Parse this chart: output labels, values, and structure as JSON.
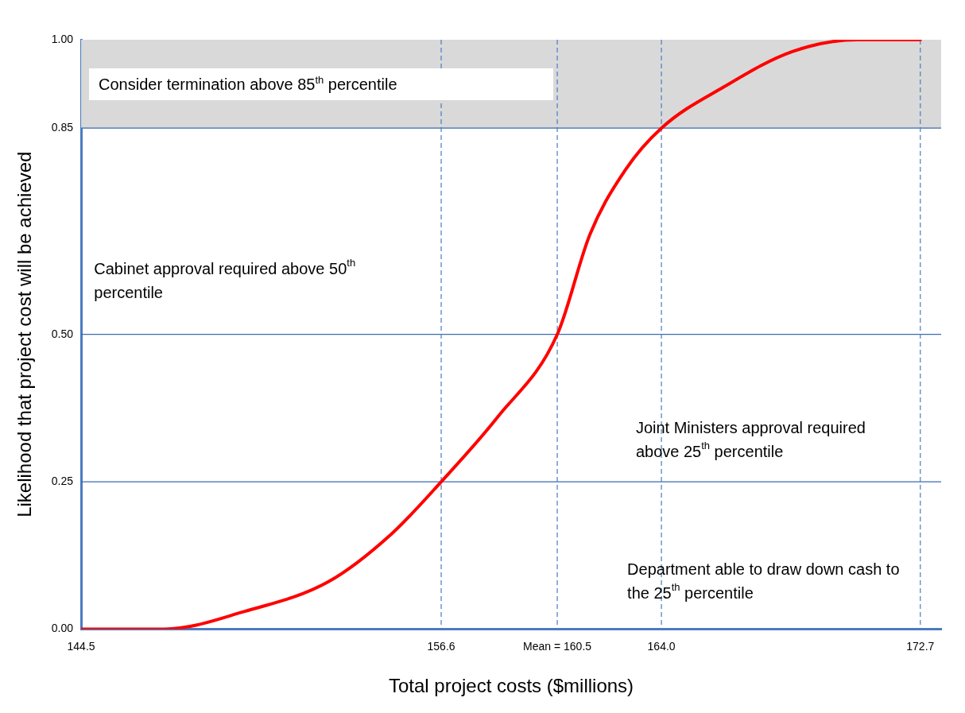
{
  "chart_data": {
    "type": "line",
    "xlabel": "Total project costs ($millions)",
    "ylabel": "Likelihood that project cost will be achieved",
    "x": [
      144.5,
      147.3,
      150.0,
      152.8,
      154.9,
      156.6,
      158.5,
      160.5,
      161.6,
      162.8,
      164.0,
      166.1,
      168.4,
      170.6,
      172.7
    ],
    "series": [
      {
        "color": "#ff0000",
        "values": [
          0.0,
          0.0,
          0.03,
          0.08,
          0.16,
          0.25,
          0.36,
          0.5,
          0.67,
          0.78,
          0.85,
          0.92,
          0.98,
          1.0,
          1.0
        ]
      }
    ],
    "xlim": [
      144.5,
      173.4
    ],
    "xticks": [
      144.5,
      156.6,
      {
        "value": 160.5,
        "label": "Mean = 160.5"
      },
      {
        "value": 164.0,
        "label": "164.0"
      },
      172.7
    ],
    "ylim": [
      0,
      1
    ],
    "yticks": [
      {
        "value": 0,
        "label": "0.00"
      },
      {
        "value": 0.25,
        "label": "0.25"
      },
      {
        "value": 0.5,
        "label": "0.50"
      },
      {
        "value": 0.85,
        "label": "0.85"
      },
      {
        "value": 1,
        "label": "1.00"
      }
    ],
    "grid": false,
    "legend": false,
    "marker": "none",
    "line_style": "solid",
    "ref_lines": [
      {
        "axis": "y",
        "value": 0.25,
        "color": "#3a6bb0",
        "line_style": "solid"
      },
      {
        "axis": "y",
        "value": 0.5,
        "color": "#3a6bb0",
        "line_style": "solid"
      },
      {
        "axis": "y",
        "value": 0.85,
        "color": "#3a6bb0",
        "line_style": "solid"
      },
      {
        "axis": "x",
        "value": 156.6,
        "color": "#4a7cc0",
        "line_style": "dashed"
      },
      {
        "axis": "x",
        "value": 160.5,
        "color": "#4a7cc0",
        "line_style": "dashed"
      },
      {
        "axis": "x",
        "value": 164.0,
        "color": "#4a7cc0",
        "line_style": "dashed"
      },
      {
        "axis": "x",
        "value": 172.7,
        "color": "#4a7cc0",
        "line_style": "dashed"
      }
    ],
    "bands": [
      {
        "axis": "y",
        "from": 0.85,
        "to": 1.0,
        "color": "#d9d9d9",
        "label": "Consider termination above 85$^{th}$ percentile"
      }
    ],
    "annotations": [
      "Cabinet approval required above 50$^{th}$ percentile",
      "Joint Ministers approval required above 25$^{th}$ percentile",
      "Department able to draw down cash to the 25$^{th}$ percentile"
    ]
  }
}
